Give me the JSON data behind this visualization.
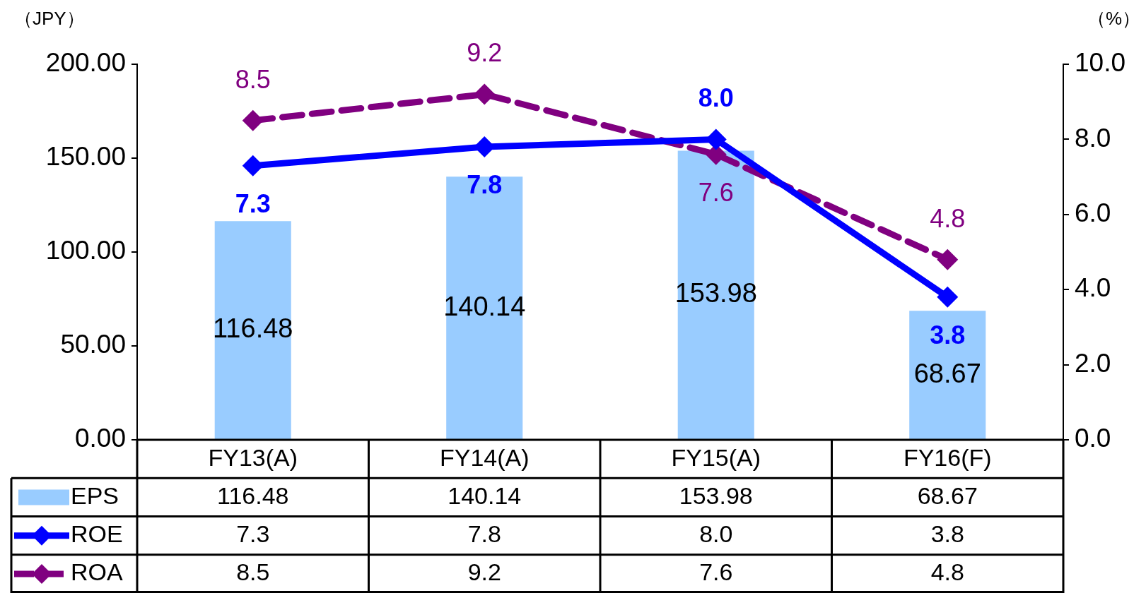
{
  "chart_data": {
    "type": "bar",
    "ylabel": "（JPY）",
    "y2label": "（%）",
    "categories": [
      "FY13(A)",
      "FY14(A)",
      "FY15(A)",
      "FY16(F)"
    ],
    "series": [
      {
        "name": "EPS",
        "color": "#99ccff",
        "values": [
          116.48,
          140.14,
          153.98,
          68.67
        ],
        "value_labels": [
          "116.48",
          "140.14",
          "153.98",
          "68.67"
        ]
      },
      {
        "name": "ROE",
        "type": "line",
        "axis": "y2",
        "color": "#0000ff",
        "line_style": "solid",
        "values": [
          7.3,
          7.8,
          8.0,
          3.8
        ],
        "value_labels": [
          "7.3",
          "7.8",
          "8.0",
          "3.8"
        ]
      },
      {
        "name": "ROA",
        "type": "line",
        "axis": "y2",
        "color": "#800080",
        "line_style": "dashed",
        "values": [
          8.5,
          9.2,
          7.6,
          4.8
        ],
        "value_labels": [
          "8.5",
          "9.2",
          "7.6",
          "4.8"
        ]
      }
    ],
    "marker": "diamond",
    "legend": "bottom",
    "grid": false,
    "ylim": [
      0,
      200
    ],
    "yticks": [
      {
        "value": 0,
        "label": "0.00"
      },
      {
        "value": 50,
        "label": "50.00"
      },
      {
        "value": 100,
        "label": "100.00"
      },
      {
        "value": 150,
        "label": "150.00"
      },
      {
        "value": 200,
        "label": "200.00"
      }
    ],
    "y2lim": [
      0,
      10
    ],
    "y2ticks": [
      {
        "value": 0,
        "label": "0.0"
      },
      {
        "value": 2,
        "label": "2.0"
      },
      {
        "value": 4,
        "label": "4.0"
      },
      {
        "value": 6,
        "label": "6.0"
      },
      {
        "value": 8,
        "label": "8.0"
      },
      {
        "value": 10,
        "label": "10.0"
      }
    ]
  }
}
